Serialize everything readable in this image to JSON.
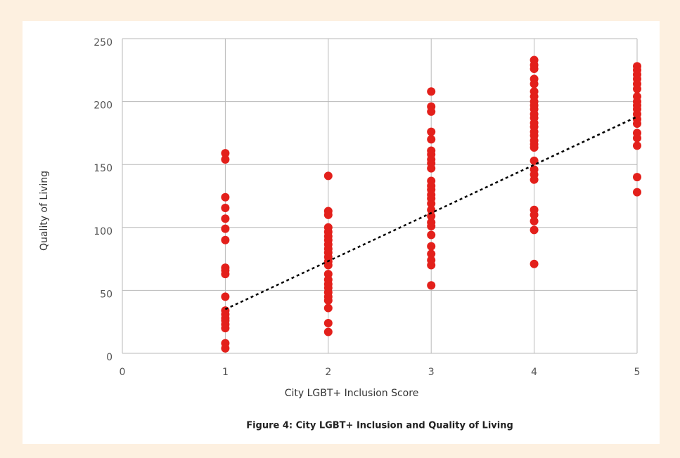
{
  "chart_data": {
    "type": "scatter",
    "caption": "Figure 4: City LGBT+ Inclusion and Quality of Living",
    "xlabel": "City LGBT+ Inclusion Score",
    "ylabel": "Quality of Living",
    "color": "#e3201b",
    "grid": true,
    "xlim": [
      0,
      5
    ],
    "xticks": [
      0,
      1,
      2,
      3,
      4,
      5
    ],
    "ylim": [
      0,
      250
    ],
    "yticks": [
      0,
      50,
      100,
      150,
      200,
      250
    ],
    "x": [
      1,
      1,
      1,
      1,
      1,
      1,
      1,
      1,
      1,
      1,
      1,
      1,
      1,
      1,
      1,
      1,
      1,
      1,
      1,
      2,
      2,
      2,
      2,
      2,
      2,
      2,
      2,
      2,
      2,
      2,
      2,
      2,
      2,
      2,
      2,
      2,
      2,
      2,
      2,
      2,
      2,
      2,
      3,
      3,
      3,
      3,
      3,
      3,
      3,
      3,
      3,
      3,
      3,
      3,
      3,
      3,
      3,
      3,
      3,
      3,
      3,
      3,
      3,
      3,
      3,
      3,
      3,
      3,
      4,
      4,
      4,
      4,
      4,
      4,
      4,
      4,
      4,
      4,
      4,
      4,
      4,
      4,
      4,
      4,
      4,
      4,
      4,
      4,
      4,
      4,
      4,
      4,
      4,
      4,
      4,
      4,
      5,
      5,
      5,
      5,
      5,
      5,
      5,
      5,
      5,
      5,
      5,
      5,
      5,
      5,
      5,
      5,
      5,
      5
    ],
    "y": [
      159,
      154,
      124,
      115.5,
      107,
      99,
      90,
      68,
      66,
      63,
      45,
      34,
      31,
      28,
      26,
      23,
      20,
      8,
      4,
      141,
      113,
      110,
      100,
      96.5,
      93,
      90,
      86.5,
      83,
      80,
      76.5,
      73,
      70,
      63,
      58.5,
      55,
      52,
      48.5,
      45,
      42,
      36,
      24,
      17,
      208,
      196,
      192,
      176,
      170,
      161,
      158,
      154,
      151,
      147,
      137,
      133,
      130,
      126,
      123,
      119,
      114,
      109,
      104,
      101,
      94,
      85,
      79,
      74,
      70,
      54,
      233,
      229,
      226,
      218,
      214,
      208,
      204,
      200,
      197,
      194,
      190,
      187,
      183,
      180,
      176,
      173,
      169,
      166,
      163.5,
      153,
      146,
      142,
      138,
      114,
      110,
      105,
      98,
      71,
      228,
      225,
      221.5,
      218,
      214,
      210,
      204,
      200,
      197,
      194,
      190,
      186,
      182.5,
      175,
      171,
      165,
      140,
      128
    ],
    "trendline": {
      "x": [
        1,
        5
      ],
      "y": [
        35,
        188
      ],
      "color": "#000000"
    }
  }
}
